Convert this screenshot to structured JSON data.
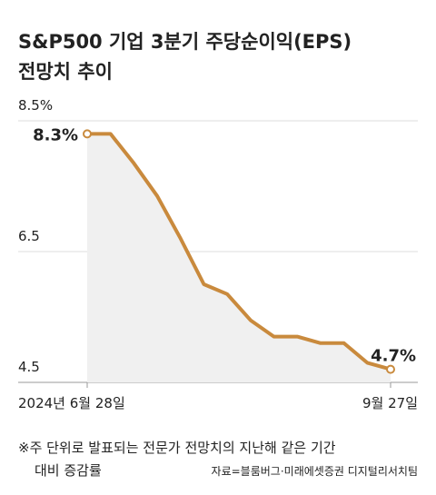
{
  "chart_data": {
    "type": "line",
    "title": [
      "S&P500 기업 3분기 주당순이익(EPS)",
      "전망치 추이"
    ],
    "categories": [
      "2024년 6월 28일",
      null,
      null,
      null,
      null,
      null,
      null,
      null,
      null,
      null,
      null,
      null,
      null,
      "9월 27일"
    ],
    "series": [
      {
        "name": null,
        "color": "#c98a3d",
        "values": [
          8.3,
          8.3,
          7.85,
          7.35,
          6.7,
          6.0,
          5.85,
          5.45,
          5.2,
          5.2,
          5.1,
          5.1,
          4.8,
          4.7
        ],
        "value_labels": [
          "8.3%",
          null,
          null,
          null,
          null,
          null,
          null,
          null,
          null,
          null,
          null,
          null,
          null,
          "4.7%"
        ]
      }
    ],
    "ylim": [
      4.5,
      8.5
    ],
    "yticks": [
      {
        "value": 8.5,
        "label": "8.5%"
      },
      6.5,
      4.5
    ],
    "grid": true,
    "note": [
      "※주 단위로 발표되는 전문가 전망치의 지난해 같은 기간",
      "대비 증감률"
    ],
    "source": "자료=블룸버그·미래에셋증권 디지털리서치팀"
  }
}
